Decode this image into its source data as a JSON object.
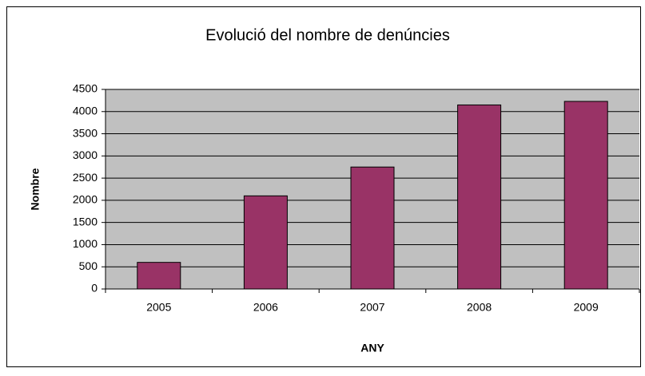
{
  "chart_data": {
    "type": "bar",
    "title": "Evolució del nombre de denúncies",
    "x_label": "ANY",
    "y_label": "Nombre",
    "categories": [
      "2005",
      "2006",
      "2007",
      "2008",
      "2009"
    ],
    "values": [
      600,
      2100,
      2750,
      4150,
      4230
    ],
    "color": "#993366",
    "ylim": [
      0,
      4500
    ],
    "yticks": [
      0,
      500,
      1000,
      1500,
      2000,
      2500,
      3000,
      3500,
      4000,
      4500
    ],
    "grid": true
  }
}
